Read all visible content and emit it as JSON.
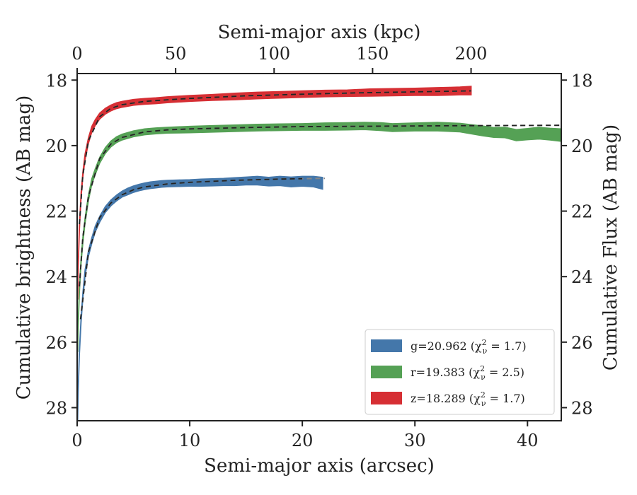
{
  "chart_data": {
    "type": "line",
    "xlabel": "Semi-major axis (arcsec)",
    "ylabel": "Cumulative brightness (AB mag)",
    "top_xlabel": "Semi-major axis (kpc)",
    "right_ylabel": "Cumulative Flux (AB mag)",
    "xlim": [
      0,
      43
    ],
    "ylim": [
      28.4,
      17.8
    ],
    "y_inverted": true,
    "top_xlim": [
      0,
      245.8
    ],
    "xticks": [
      0,
      10,
      20,
      30,
      40
    ],
    "yticks": [
      18,
      20,
      22,
      24,
      26,
      28
    ],
    "top_xticks": [
      0,
      50,
      100,
      150,
      200
    ],
    "grid": false,
    "legend_position": "lower-right",
    "legend": [
      {
        "label": "g=20.962 (χ",
        "sup": "2",
        "sub": "ν",
        "rest": " = 1.7)",
        "series": "g"
      },
      {
        "label": "r=19.383 (χ",
        "sup": "2",
        "sub": "ν",
        "rest": " = 2.5)",
        "series": "r"
      },
      {
        "label": "z=18.289 (χ",
        "sup": "2",
        "sub": "ν",
        "rest": " = 1.7)",
        "series": "z"
      }
    ],
    "series": [
      {
        "name": "g",
        "color": "#4477aa",
        "x": [
          0.05,
          0.1,
          0.2,
          0.35,
          0.5,
          0.7,
          1.0,
          1.3,
          1.6,
          2.0,
          2.5,
          3.0,
          3.5,
          4.0,
          4.5,
          5.0,
          5.5,
          6.0,
          6.5,
          7.0,
          7.5,
          8.0,
          9.0,
          10,
          11,
          12,
          13,
          14,
          15,
          16,
          17,
          18,
          19,
          20,
          21,
          21.8
        ],
        "y": [
          28.3,
          27.4,
          26.3,
          25.3,
          24.6,
          23.9,
          23.3,
          22.9,
          22.55,
          22.25,
          21.95,
          21.75,
          21.6,
          21.48,
          21.4,
          21.33,
          21.28,
          21.24,
          21.21,
          21.19,
          21.17,
          21.16,
          21.15,
          21.14,
          21.13,
          21.12,
          21.11,
          21.1,
          21.08,
          21.07,
          21.1,
          21.08,
          21.11,
          21.09,
          21.1,
          21.15
        ],
        "lo": [
          0.05,
          0.05,
          0.05,
          0.05,
          0.05,
          0.05,
          0.04,
          0.04,
          0.04,
          0.04,
          0.04,
          0.04,
          0.04,
          0.04,
          0.05,
          0.05,
          0.05,
          0.05,
          0.05,
          0.05,
          0.05,
          0.05,
          0.05,
          0.05,
          0.06,
          0.06,
          0.06,
          0.07,
          0.07,
          0.08,
          0.08,
          0.09,
          0.1,
          0.1,
          0.11,
          0.13
        ],
        "model_x": [
          0.3,
          1,
          2,
          3,
          4,
          5,
          6,
          8,
          10,
          12,
          14,
          16,
          18,
          20,
          22
        ],
        "model_y": [
          25.3,
          23.25,
          22.2,
          21.75,
          21.5,
          21.35,
          21.26,
          21.17,
          21.12,
          21.09,
          21.06,
          21.04,
          21.02,
          21.01,
          21.0
        ],
        "model_end_x": 21.8
      },
      {
        "name": "r",
        "color": "#55a155",
        "x": [
          0.05,
          0.1,
          0.2,
          0.35,
          0.5,
          0.7,
          1.0,
          1.3,
          1.6,
          2.0,
          2.5,
          3.0,
          3.5,
          4.0,
          5.0,
          6.0,
          7.0,
          8.0,
          10,
          12,
          14,
          16,
          18,
          20,
          22,
          24,
          25.5,
          27,
          28,
          30,
          32,
          34,
          35,
          36,
          37,
          38,
          39,
          40,
          41,
          42,
          43
        ],
        "y": [
          26.2,
          25.4,
          24.4,
          23.5,
          22.9,
          22.3,
          21.6,
          21.1,
          20.8,
          20.45,
          20.15,
          19.95,
          19.82,
          19.74,
          19.64,
          19.58,
          19.55,
          19.53,
          19.51,
          19.49,
          19.47,
          19.45,
          19.44,
          19.43,
          19.42,
          19.41,
          19.4,
          19.42,
          19.45,
          19.43,
          19.42,
          19.45,
          19.5,
          19.55,
          19.6,
          19.6,
          19.68,
          19.65,
          19.62,
          19.65,
          19.68
        ],
        "lo": [
          0.05,
          0.05,
          0.05,
          0.05,
          0.05,
          0.04,
          0.04,
          0.04,
          0.04,
          0.04,
          0.04,
          0.04,
          0.04,
          0.04,
          0.04,
          0.04,
          0.04,
          0.04,
          0.05,
          0.05,
          0.05,
          0.05,
          0.05,
          0.05,
          0.06,
          0.06,
          0.06,
          0.07,
          0.07,
          0.07,
          0.08,
          0.08,
          0.09,
          0.1,
          0.1,
          0.11,
          0.12,
          0.12,
          0.13,
          0.13,
          0.14
        ],
        "model_x": [
          0.2,
          0.5,
          1,
          2,
          3,
          4,
          6,
          8,
          10,
          15,
          20,
          25,
          30,
          35,
          43
        ],
        "model_y": [
          24.3,
          22.8,
          21.55,
          20.4,
          19.95,
          19.75,
          19.58,
          19.52,
          19.49,
          19.45,
          19.42,
          19.41,
          19.4,
          19.39,
          19.38
        ],
        "model_end_x": 43
      },
      {
        "name": "z",
        "color": "#d62f34",
        "x": [
          0.05,
          0.1,
          0.2,
          0.35,
          0.5,
          0.7,
          1.0,
          1.3,
          1.6,
          2.0,
          2.5,
          3.0,
          3.5,
          4.0,
          5.0,
          6.0,
          7.0,
          8.0,
          10,
          12,
          14,
          16,
          18,
          20,
          22,
          24,
          26,
          28,
          30,
          32,
          33,
          34,
          35
        ],
        "y": [
          24.6,
          23.6,
          22.5,
          21.5,
          20.9,
          20.35,
          19.85,
          19.5,
          19.3,
          19.1,
          18.95,
          18.85,
          18.78,
          18.74,
          18.68,
          18.65,
          18.63,
          18.6,
          18.56,
          18.53,
          18.5,
          18.47,
          18.45,
          18.43,
          18.41,
          18.4,
          18.38,
          18.37,
          18.36,
          18.35,
          18.34,
          18.33,
          18.32
        ],
        "lo": [
          0.05,
          0.05,
          0.05,
          0.05,
          0.04,
          0.04,
          0.04,
          0.04,
          0.04,
          0.04,
          0.04,
          0.04,
          0.04,
          0.04,
          0.04,
          0.04,
          0.04,
          0.04,
          0.04,
          0.04,
          0.05,
          0.05,
          0.05,
          0.05,
          0.05,
          0.05,
          0.06,
          0.06,
          0.06,
          0.07,
          0.07,
          0.07,
          0.08
        ],
        "model_x": [
          0.2,
          0.5,
          1,
          2,
          3,
          4,
          6,
          8,
          10,
          15,
          20,
          25,
          30,
          35
        ],
        "model_y": [
          22.4,
          20.9,
          19.85,
          19.12,
          18.86,
          18.75,
          18.65,
          18.6,
          18.56,
          18.48,
          18.43,
          18.39,
          18.36,
          18.33
        ],
        "model_end_x": 35
      }
    ]
  }
}
